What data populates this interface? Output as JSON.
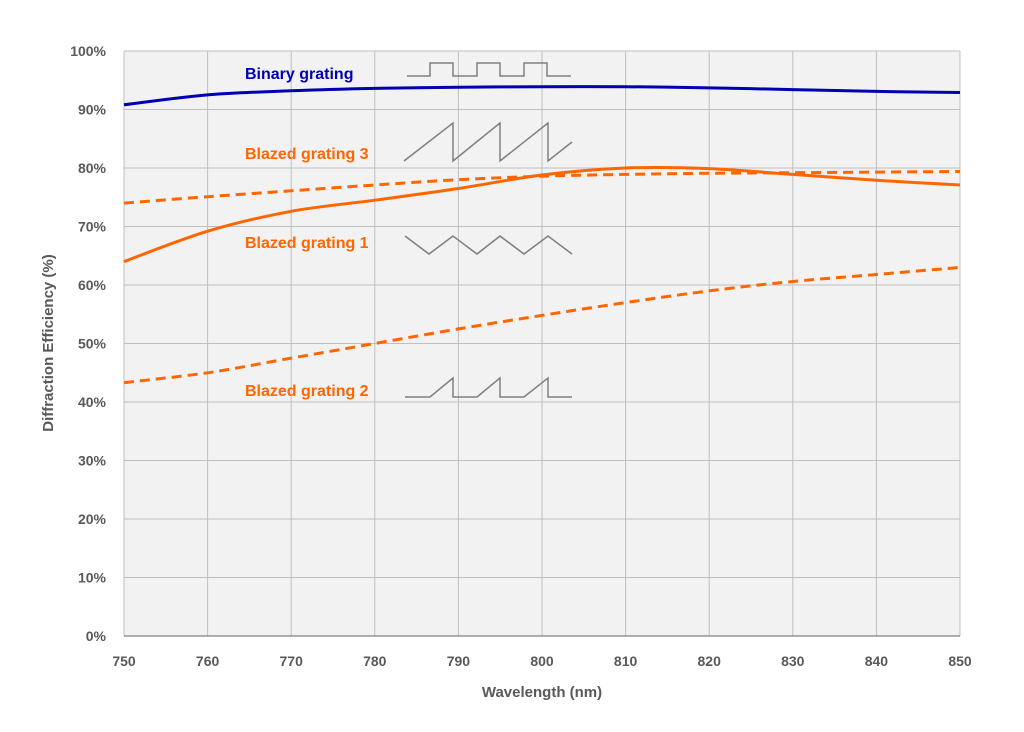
{
  "chart_data": {
    "type": "line",
    "xlabel": "Wavelength (nm)",
    "ylabel": "Diffraction Efficiency (%)",
    "xlim": [
      750,
      850
    ],
    "ylim": [
      0,
      100
    ],
    "x_ticks": [
      "750",
      "760",
      "770",
      "780",
      "790",
      "800",
      "810",
      "820",
      "830",
      "840",
      "850"
    ],
    "y_ticks": [
      "0%",
      "10%",
      "20%",
      "30%",
      "40%",
      "50%",
      "60%",
      "70%",
      "80%",
      "90%",
      "100%"
    ],
    "grid": true,
    "x": [
      750,
      760,
      770,
      780,
      790,
      800,
      810,
      820,
      830,
      840,
      850
    ],
    "series": [
      {
        "name": "Binary grating",
        "style": "solid",
        "color": "#0000b3",
        "profile_icon": "square-wave-icon",
        "values": [
          90.8,
          92.5,
          93.2,
          93.6,
          93.8,
          93.9,
          93.9,
          93.7,
          93.4,
          93.1,
          92.9
        ]
      },
      {
        "name": "Blazed grating 3",
        "style": "dashed",
        "color": "#ff6600",
        "profile_icon": "sawtooth-icon",
        "values": [
          74.0,
          75.1,
          76.1,
          77.1,
          78.0,
          78.6,
          78.9,
          79.1,
          79.2,
          79.3,
          79.4
        ]
      },
      {
        "name": "Blazed grating 1",
        "style": "solid",
        "color": "#ff6600",
        "profile_icon": "triangle-wave-icon",
        "values": [
          64.0,
          69.2,
          72.6,
          74.5,
          76.5,
          78.8,
          80.0,
          79.9,
          78.9,
          77.9,
          77.1
        ]
      },
      {
        "name": "Blazed grating 2",
        "style": "dashed",
        "color": "#ff6600",
        "profile_icon": "partial-sawtooth-icon",
        "values": [
          43.3,
          45.0,
          47.5,
          50.0,
          52.5,
          54.8,
          57.0,
          59.0,
          60.6,
          61.8,
          63.0
        ]
      }
    ],
    "annotations": {
      "labels_position": "inside-plot",
      "colors": {
        "binary": "#0000b3",
        "blazed": "#ff6600",
        "profile_icon": "#7f7f7f"
      }
    }
  }
}
